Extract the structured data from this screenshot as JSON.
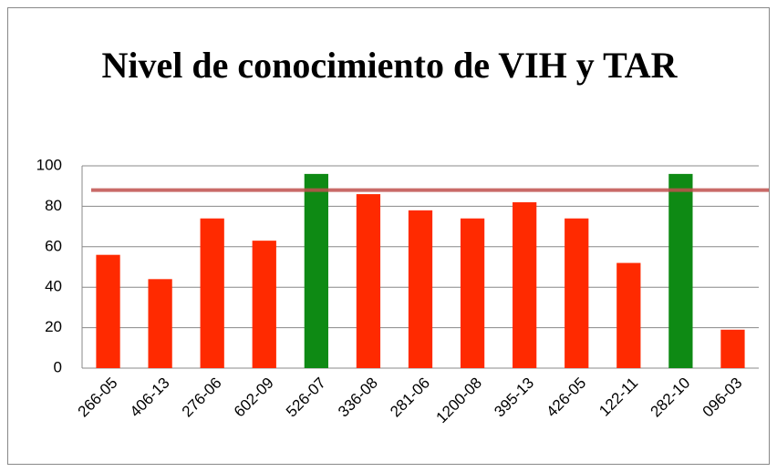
{
  "chart_data": {
    "type": "bar",
    "title": "Nivel de conocimiento de VIH y TAR",
    "categories": [
      "266-05",
      "406-13",
      "276-06",
      "602-09",
      "526-07",
      "336-08",
      "281-06",
      "1200-08",
      "395-13",
      "426-05",
      "122-11",
      "282-10",
      "096-03"
    ],
    "values": [
      56,
      44,
      74,
      63,
      96,
      86,
      78,
      74,
      82,
      74,
      52,
      96,
      19
    ],
    "colors": [
      "#ff2a00",
      "#ff2a00",
      "#ff2a00",
      "#ff2a00",
      "#0e8a14",
      "#ff2a00",
      "#ff2a00",
      "#ff2a00",
      "#ff2a00",
      "#ff2a00",
      "#ff2a00",
      "#0e8a14",
      "#ff2a00"
    ],
    "reference_line": {
      "value": 88,
      "color": "#c0504d"
    },
    "ylim": [
      0,
      100
    ],
    "yticks": [
      0,
      20,
      40,
      60,
      80,
      100
    ],
    "grid": true
  }
}
